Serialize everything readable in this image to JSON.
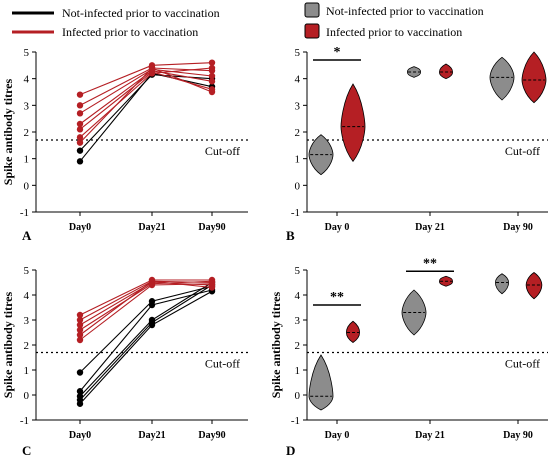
{
  "legend_left": {
    "items": [
      {
        "label": "Not-infected prior to vaccination",
        "color": "#000000"
      },
      {
        "label": "Infected prior to vaccination",
        "color": "#b51f24"
      }
    ]
  },
  "legend_right": {
    "items": [
      {
        "label": "Not-infected prior to vaccination",
        "color": "#8c8c8c"
      },
      {
        "label": "Infected prior to vaccination",
        "color": "#b51f24"
      }
    ]
  },
  "colors": {
    "not_infected_line": "#000000",
    "infected_line": "#b51f24",
    "not_infected_violin": "#8c8c8c",
    "infected_violin": "#b51f24"
  },
  "chart_data": [
    {
      "panel": "A",
      "type": "line",
      "ylabel": "Spike antibody titres",
      "ylim": [
        -1,
        5
      ],
      "yticks": [
        -1,
        0,
        1,
        2,
        3,
        4,
        5
      ],
      "categories": [
        "Day0",
        "Day21",
        "Day90"
      ],
      "cutoff": {
        "value": 1.7,
        "label": "Cut-off"
      },
      "series": [
        {
          "group": "not-infected",
          "values": [
            0.9,
            4.2,
            3.7
          ]
        },
        {
          "group": "not-infected",
          "values": [
            1.3,
            4.15,
            4.0
          ]
        },
        {
          "group": "infected",
          "values": [
            3.4,
            4.5,
            4.6
          ]
        },
        {
          "group": "infected",
          "values": [
            3.0,
            4.4,
            4.3
          ]
        },
        {
          "group": "infected",
          "values": [
            2.7,
            4.35,
            4.1
          ]
        },
        {
          "group": "infected",
          "values": [
            2.3,
            4.3,
            3.9
          ]
        },
        {
          "group": "infected",
          "values": [
            2.1,
            4.25,
            3.6
          ]
        },
        {
          "group": "infected",
          "values": [
            1.8,
            4.2,
            4.4
          ]
        },
        {
          "group": "infected",
          "values": [
            1.6,
            4.4,
            3.5
          ]
        }
      ]
    },
    {
      "panel": "B",
      "type": "violin",
      "ylabel": "",
      "ylim": [
        -1,
        5
      ],
      "yticks": [
        -1,
        0,
        1,
        2,
        3,
        4,
        5
      ],
      "categories": [
        "Day 0",
        "Day 21",
        "Day 90"
      ],
      "cutoff": {
        "value": 1.7,
        "label": "Cut-off"
      },
      "groups": [
        {
          "category": "Day 0",
          "group": "not-infected",
          "min": 0.4,
          "max": 1.9,
          "median": 1.15,
          "q1": 0.9,
          "q3": 1.5
        },
        {
          "category": "Day 0",
          "group": "infected",
          "min": 0.9,
          "max": 3.8,
          "median": 2.2,
          "q1": 1.9,
          "q3": 2.7
        },
        {
          "category": "Day 21",
          "group": "not-infected",
          "min": 4.05,
          "max": 4.45,
          "median": 4.25,
          "q1": 4.15,
          "q3": 4.35
        },
        {
          "category": "Day 21",
          "group": "infected",
          "min": 4.0,
          "max": 4.55,
          "median": 4.25,
          "q1": 4.15,
          "q3": 4.35
        },
        {
          "category": "Day 90",
          "group": "not-infected",
          "min": 3.2,
          "max": 4.8,
          "median": 4.05,
          "q1": 3.8,
          "q3": 4.3
        },
        {
          "category": "Day 90",
          "group": "infected",
          "min": 3.1,
          "max": 5.0,
          "median": 3.95,
          "q1": 3.7,
          "q3": 4.3
        }
      ],
      "significance": [
        {
          "category": "Day 0",
          "label": "*",
          "y": 4.7
        }
      ]
    },
    {
      "panel": "C",
      "type": "line",
      "ylabel": "Spike antibody titres",
      "ylim": [
        -1,
        5
      ],
      "yticks": [
        -1,
        0,
        1,
        2,
        3,
        4,
        5
      ],
      "categories": [
        "Day0",
        "Day21",
        "Day90"
      ],
      "cutoff": {
        "value": 1.7,
        "label": "Cut-off"
      },
      "series": [
        {
          "group": "not-infected",
          "values": [
            0.9,
            3.75,
            4.35
          ]
        },
        {
          "group": "not-infected",
          "values": [
            0.15,
            3.6,
            4.2
          ]
        },
        {
          "group": "not-infected",
          "values": [
            -0.05,
            3.0,
            4.5
          ]
        },
        {
          "group": "not-infected",
          "values": [
            -0.2,
            2.9,
            4.4
          ]
        },
        {
          "group": "not-infected",
          "values": [
            -0.35,
            2.8,
            4.15
          ]
        },
        {
          "group": "infected",
          "values": [
            3.2,
            4.6,
            4.6
          ]
        },
        {
          "group": "infected",
          "values": [
            3.0,
            4.55,
            4.5
          ]
        },
        {
          "group": "infected",
          "values": [
            2.8,
            4.5,
            4.4
          ]
        },
        {
          "group": "infected",
          "values": [
            2.6,
            4.45,
            4.55
          ]
        },
        {
          "group": "infected",
          "values": [
            2.4,
            4.55,
            4.3
          ]
        },
        {
          "group": "infected",
          "values": [
            2.2,
            4.4,
            4.45
          ]
        }
      ]
    },
    {
      "panel": "D",
      "type": "violin",
      "ylabel": "Spike antibody titres",
      "ylim": [
        -1,
        5
      ],
      "yticks": [
        -1,
        0,
        1,
        2,
        3,
        4,
        5
      ],
      "categories": [
        "Day 0",
        "Day 21",
        "Day 90"
      ],
      "cutoff": {
        "value": 1.7,
        "label": "Cut-off"
      },
      "groups": [
        {
          "category": "Day 0",
          "group": "not-infected",
          "min": -0.6,
          "max": 1.6,
          "median": -0.05,
          "q1": -0.3,
          "q3": 0.4
        },
        {
          "category": "Day 0",
          "group": "infected",
          "min": 2.1,
          "max": 2.95,
          "median": 2.5,
          "q1": 2.35,
          "q3": 2.65
        },
        {
          "category": "Day 21",
          "group": "not-infected",
          "min": 2.4,
          "max": 4.2,
          "median": 3.3,
          "q1": 2.9,
          "q3": 3.7
        },
        {
          "category": "Day 21",
          "group": "infected",
          "min": 4.35,
          "max": 4.75,
          "median": 4.55,
          "q1": 4.45,
          "q3": 4.65
        },
        {
          "category": "Day 90",
          "group": "not-infected",
          "min": 4.05,
          "max": 4.85,
          "median": 4.5,
          "q1": 4.3,
          "q3": 4.65
        },
        {
          "category": "Day 90",
          "group": "infected",
          "min": 3.85,
          "max": 4.9,
          "median": 4.4,
          "q1": 4.2,
          "q3": 4.6
        }
      ],
      "significance": [
        {
          "category": "Day 0",
          "label": "**",
          "y": 3.6
        },
        {
          "category": "Day 21",
          "label": "**",
          "y": 4.95
        }
      ]
    }
  ]
}
